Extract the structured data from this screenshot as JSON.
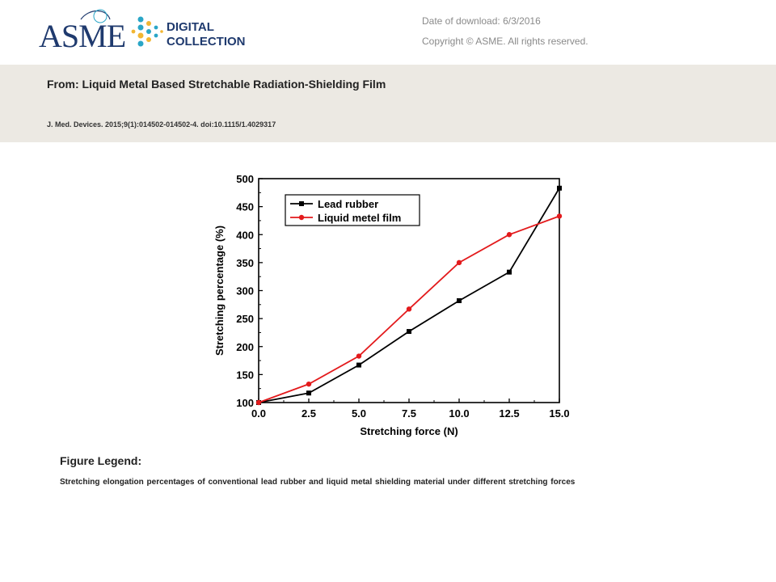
{
  "header": {
    "logo": {
      "brand": "ASME",
      "line1": "DIGITAL",
      "line2": "COLLECTION",
      "colors": {
        "navy": "#1f3a6e",
        "teal": "#2aa6c7",
        "gold": "#f2b632"
      }
    },
    "date_of_download": "Date of download:  6/3/2016",
    "copyright": "Copyright © ASME. All rights reserved."
  },
  "article": {
    "title": "From: Liquid Metal Based Stretchable Radiation-Shielding Film",
    "citation": "J. Med. Devices. 2015;9(1):014502-014502-4. doi:10.1115/1.4029317"
  },
  "figure": {
    "legend_title": "Figure Legend:",
    "legend_text": "Stretching elongation percentages  of conventional lead rubber and liquid metal shielding material under different stretching forces"
  },
  "chart_data": {
    "type": "line",
    "xlabel": "Stretching force (N)",
    "ylabel": "Stretching percentage (%)",
    "xlim": [
      0,
      15
    ],
    "ylim": [
      100,
      500
    ],
    "xticks": [
      "0.0",
      "2.5",
      "5.0",
      "7.5",
      "10.0",
      "12.5",
      "15.0"
    ],
    "yticks": [
      "100",
      "150",
      "200",
      "250",
      "300",
      "350",
      "400",
      "450",
      "500"
    ],
    "legend_position": "top-left",
    "grid": false,
    "x": [
      0,
      2.5,
      5.0,
      7.5,
      10.0,
      12.5,
      15.0
    ],
    "series": [
      {
        "name": "Lead rubber",
        "color": "#000000",
        "marker": "square",
        "values": [
          100,
          117,
          167,
          227,
          282,
          333,
          483
        ]
      },
      {
        "name": "Liquid metel film",
        "color": "#e31a1c",
        "marker": "circle",
        "values": [
          100,
          133,
          183,
          267,
          350,
          400,
          433
        ]
      }
    ]
  }
}
